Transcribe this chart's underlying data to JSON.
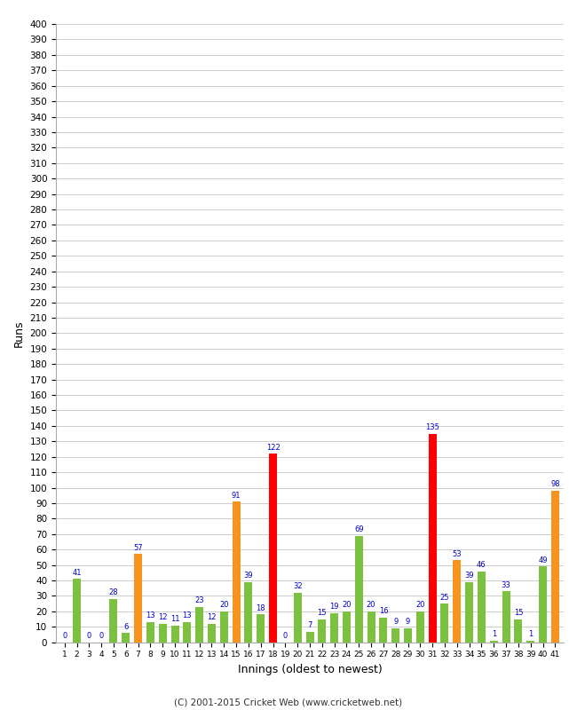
{
  "xlabel": "Innings (oldest to newest)",
  "ylabel": "Runs",
  "background_color": "#ffffff",
  "grid_color": "#cccccc",
  "innings": [
    1,
    2,
    3,
    4,
    5,
    6,
    7,
    8,
    9,
    10,
    11,
    12,
    13,
    14,
    15,
    16,
    17,
    18,
    19,
    20,
    21,
    22,
    23,
    24,
    25,
    26,
    27,
    28,
    29,
    30,
    31,
    32,
    33,
    34,
    35,
    36,
    37,
    38,
    39,
    40,
    41
  ],
  "values": [
    0,
    41,
    0,
    0,
    28,
    6,
    57,
    13,
    12,
    11,
    13,
    23,
    12,
    20,
    91,
    39,
    18,
    122,
    0,
    32,
    7,
    15,
    19,
    20,
    69,
    20,
    16,
    9,
    9,
    20,
    135,
    25,
    53,
    39,
    46,
    1,
    33,
    15,
    1,
    49,
    98
  ],
  "colors": [
    "#7dc141",
    "#7dc141",
    "#7dc141",
    "#7dc141",
    "#7dc141",
    "#7dc141",
    "#f7941d",
    "#7dc141",
    "#7dc141",
    "#7dc141",
    "#7dc141",
    "#7dc141",
    "#7dc141",
    "#7dc141",
    "#f7941d",
    "#7dc141",
    "#7dc141",
    "#ff0000",
    "#7dc141",
    "#7dc141",
    "#7dc141",
    "#7dc141",
    "#7dc141",
    "#7dc141",
    "#7dc141",
    "#7dc141",
    "#7dc141",
    "#7dc141",
    "#7dc141",
    "#7dc141",
    "#ff0000",
    "#7dc141",
    "#f7941d",
    "#7dc141",
    "#7dc141",
    "#7dc141",
    "#7dc141",
    "#7dc141",
    "#7dc141",
    "#7dc141",
    "#f7941d"
  ],
  "ylim": [
    0,
    400
  ],
  "yticks": [
    0,
    10,
    20,
    30,
    40,
    50,
    60,
    70,
    80,
    90,
    100,
    110,
    120,
    130,
    140,
    150,
    160,
    170,
    180,
    190,
    200,
    210,
    220,
    230,
    240,
    250,
    260,
    270,
    280,
    290,
    300,
    310,
    320,
    330,
    340,
    350,
    360,
    370,
    380,
    390,
    400
  ],
  "label_color": "#0000cc",
  "footer": "(C) 2001-2015 Cricket Web (www.cricketweb.net)"
}
